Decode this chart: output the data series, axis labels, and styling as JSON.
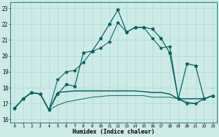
{
  "xlabel": "Humidex (Indice chaleur)",
  "xlim": [
    -0.5,
    23.5
  ],
  "ylim": [
    15.8,
    23.4
  ],
  "yticks": [
    16,
    17,
    18,
    19,
    20,
    21,
    22,
    23
  ],
  "xticks": [
    0,
    1,
    2,
    3,
    4,
    5,
    6,
    7,
    8,
    9,
    10,
    11,
    12,
    13,
    14,
    15,
    16,
    17,
    18,
    19,
    20,
    21,
    22,
    23
  ],
  "bg_color": "#cdeae7",
  "grid_color": "#a8d8d4",
  "line_color": "#006060",
  "line1_x": [
    0,
    1,
    2,
    3,
    4,
    5,
    6,
    7,
    8,
    9,
    10,
    11,
    12,
    13,
    14,
    15,
    16,
    17,
    18,
    19,
    20,
    21,
    22,
    23
  ],
  "line1_y": [
    16.7,
    17.3,
    17.7,
    17.6,
    16.6,
    17.6,
    18.2,
    18.1,
    20.2,
    20.3,
    21.1,
    22.0,
    22.9,
    21.5,
    21.8,
    21.8,
    21.7,
    21.1,
    20.2,
    17.3,
    19.5,
    19.4,
    17.3,
    17.5
  ],
  "line2_x": [
    0,
    1,
    2,
    3,
    4,
    5,
    6,
    7,
    8,
    9,
    10,
    11,
    12,
    13,
    14,
    15,
    16,
    17,
    18,
    19,
    20,
    21,
    22,
    23
  ],
  "line2_y": [
    16.7,
    17.3,
    17.7,
    17.6,
    16.6,
    18.5,
    19.0,
    19.1,
    19.6,
    20.3,
    20.5,
    20.9,
    22.1,
    21.5,
    21.8,
    21.8,
    21.1,
    20.5,
    20.6,
    17.3,
    17.0,
    17.0,
    17.3,
    17.5
  ],
  "line3_y": [
    16.7,
    17.3,
    17.7,
    17.6,
    16.6,
    17.7,
    17.75,
    17.8,
    17.8,
    17.8,
    17.8,
    17.8,
    17.8,
    17.8,
    17.8,
    17.75,
    17.7,
    17.7,
    17.6,
    17.3,
    17.3,
    17.3,
    17.3,
    17.5
  ],
  "line4_y": [
    16.7,
    17.3,
    17.7,
    17.6,
    16.6,
    16.9,
    17.1,
    17.2,
    17.3,
    17.4,
    17.45,
    17.5,
    17.5,
    17.5,
    17.5,
    17.5,
    17.4,
    17.4,
    17.4,
    17.3,
    17.1,
    17.0,
    17.3,
    17.5
  ]
}
